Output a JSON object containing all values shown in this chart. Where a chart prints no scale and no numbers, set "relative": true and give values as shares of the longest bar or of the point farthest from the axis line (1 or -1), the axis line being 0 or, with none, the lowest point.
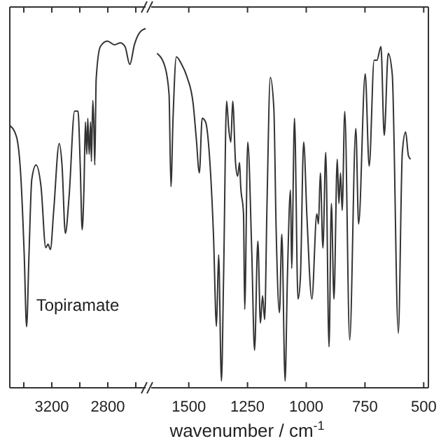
{
  "chart_data": [
    {
      "type": "line",
      "relative": true,
      "color": "#333333",
      "xlim": [
        3500,
        2530
      ],
      "xticks": [
        {
          "value": 3400,
          "label": null
        },
        3200,
        {
          "value": 3000,
          "label": null
        },
        2800,
        {
          "value": 2600,
          "label": null
        }
      ],
      "annotations": [
        "Topiramate"
      ],
      "x": [
        3500,
        3453,
        3420,
        3397,
        3380,
        3363,
        3343,
        3313,
        3277,
        3243,
        3227,
        3210,
        3187,
        3147,
        3127,
        3103,
        3077,
        3037,
        3013,
        2997,
        2983,
        2970,
        2960,
        2950,
        2943,
        2933,
        2923,
        2917,
        2907,
        2900,
        2893,
        2883,
        2853,
        2803,
        2753,
        2710,
        2677,
        2643,
        2610,
        2570,
        2530
      ],
      "values": [
        0.73,
        0.7,
        0.58,
        0.37,
        0.17,
        0.37,
        0.58,
        0.62,
        0.56,
        0.39,
        0.4,
        0.385,
        0.49,
        0.68,
        0.62,
        0.43,
        0.53,
        0.77,
        0.77,
        0.62,
        0.44,
        0.56,
        0.74,
        0.65,
        0.75,
        0.65,
        0.74,
        0.63,
        0.8,
        0.74,
        0.62,
        0.86,
        0.95,
        0.965,
        0.955,
        0.96,
        0.95,
        0.9,
        0.955,
        0.99,
        1.0
      ]
    },
    {
      "type": "line",
      "relative": true,
      "color": "#333333",
      "xlim": [
        1660,
        480
      ],
      "xticks": [
        1500,
        1250,
        1000,
        750,
        500
      ],
      "xlabel": "wavenumber / cm$^{-1}$",
      "x": [
        1635,
        1601,
        1584,
        1576,
        1567,
        1553,
        1532,
        1507,
        1481,
        1468,
        1455,
        1443,
        1429,
        1412,
        1395,
        1382,
        1373,
        1361,
        1352,
        1339,
        1330,
        1321,
        1313,
        1301,
        1292,
        1284,
        1279,
        1267,
        1262,
        1249,
        1232,
        1220,
        1206,
        1195,
        1186,
        1177,
        1167,
        1153,
        1138,
        1128,
        1114,
        1104,
        1090,
        1080,
        1067,
        1062,
        1050,
        1035,
        1025,
        1011,
        997,
        976,
        955,
        948,
        940,
        929,
        917,
        903,
        893,
        882,
        868,
        861,
        854,
        847,
        836,
        815,
        789,
        777,
        749,
        732,
        711,
        699,
        682,
        668,
        651,
        634,
        608,
        591,
        577,
        565,
        556
      ],
      "values": [
        0.98,
        0.94,
        0.86,
        0.59,
        0.79,
        0.97,
        0.95,
        0.91,
        0.83,
        0.73,
        0.63,
        0.79,
        0.78,
        0.68,
        0.45,
        0.18,
        0.39,
        0.02,
        0.32,
        0.84,
        0.76,
        0.72,
        0.84,
        0.66,
        0.62,
        0.66,
        0.59,
        0.51,
        0.23,
        0.72,
        0.4,
        0.11,
        0.43,
        0.19,
        0.27,
        0.2,
        0.54,
        0.91,
        0.82,
        0.46,
        0.22,
        0.45,
        0.02,
        0.33,
        0.58,
        0.35,
        0.79,
        0.26,
        0.32,
        0.72,
        0.5,
        0.26,
        0.51,
        0.48,
        0.63,
        0.41,
        0.69,
        0.12,
        0.54,
        0.26,
        0.67,
        0.54,
        0.63,
        0.52,
        0.81,
        0.14,
        0.76,
        0.48,
        0.92,
        0.65,
        0.96,
        0.96,
        1.0,
        0.74,
        0.98,
        0.92,
        0.16,
        0.69,
        0.75,
        0.68,
        0.67
      ]
    }
  ]
}
